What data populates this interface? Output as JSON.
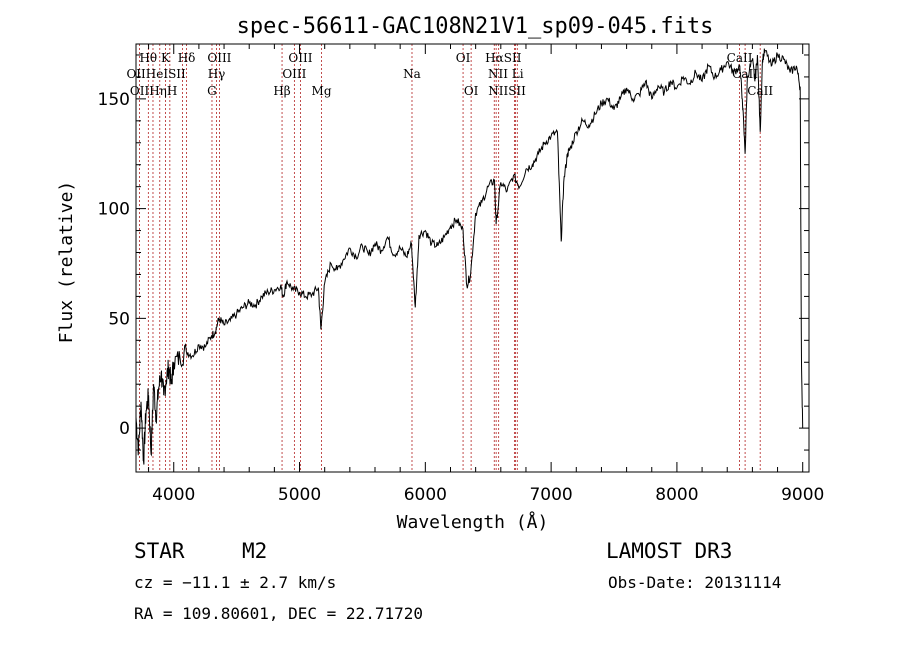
{
  "chart_data": {
    "type": "line",
    "title": "spec-56611-GAC108N21V1_sp09-045.fits",
    "xlabel": "Wavelength (Å)",
    "ylabel": "Flux (relative)",
    "xlim": [
      3700,
      9050
    ],
    "ylim": [
      -20,
      175
    ],
    "xticks": [
      4000,
      5000,
      6000,
      7000,
      8000,
      9000
    ],
    "yticks": [
      0,
      50,
      100,
      150
    ],
    "series": [
      {
        "name": "flux",
        "x": [
          3700,
          3720,
          3740,
          3760,
          3780,
          3800,
          3820,
          3840,
          3860,
          3880,
          3900,
          3920,
          3940,
          3960,
          3980,
          4000,
          4050,
          4100,
          4150,
          4200,
          4250,
          4300,
          4330,
          4360,
          4400,
          4450,
          4500,
          4550,
          4600,
          4650,
          4700,
          4750,
          4800,
          4850,
          4870,
          4900,
          4950,
          5000,
          5050,
          5100,
          5150,
          5170,
          5200,
          5250,
          5300,
          5350,
          5400,
          5450,
          5500,
          5550,
          5600,
          5650,
          5700,
          5750,
          5800,
          5850,
          5890,
          5920,
          5950,
          6000,
          6050,
          6100,
          6150,
          6200,
          6250,
          6300,
          6330,
          6360,
          6400,
          6450,
          6500,
          6550,
          6563,
          6600,
          6650,
          6700,
          6750,
          6800,
          6850,
          6900,
          6950,
          7000,
          7050,
          7080,
          7100,
          7130,
          7150,
          7200,
          7250,
          7300,
          7350,
          7400,
          7450,
          7500,
          7550,
          7600,
          7650,
          7700,
          7750,
          7800,
          7850,
          7900,
          7950,
          8000,
          8050,
          8100,
          8150,
          8200,
          8250,
          8300,
          8350,
          8400,
          8450,
          8500,
          8520,
          8542,
          8560,
          8600,
          8620,
          8640,
          8662,
          8680,
          8700,
          8750,
          8800,
          8850,
          8900,
          8950,
          8980,
          8990,
          9000
        ],
        "y": [
          5,
          -10,
          12,
          -15,
          8,
          15,
          -12,
          20,
          5,
          18,
          25,
          15,
          22,
          28,
          20,
          30,
          32,
          35,
          33,
          38,
          37,
          42,
          44,
          50,
          47,
          49,
          52,
          55,
          57,
          56,
          60,
          62,
          63,
          65,
          60,
          67,
          63,
          62,
          60,
          61,
          64,
          45,
          66,
          75,
          72,
          77,
          82,
          78,
          83,
          79,
          84,
          81,
          87,
          79,
          82,
          78,
          84,
          55,
          88,
          90,
          84,
          83,
          87,
          92,
          95,
          90,
          65,
          70,
          98,
          103,
          110,
          113,
          93,
          112,
          108,
          115,
          110,
          118,
          120,
          125,
          130,
          133,
          135,
          85,
          112,
          125,
          127,
          135,
          140,
          138,
          143,
          148,
          150,
          145,
          150,
          155,
          150,
          152,
          158,
          150,
          156,
          153,
          158,
          155,
          160,
          157,
          162,
          158,
          165,
          160,
          163,
          167,
          162,
          165,
          150,
          125,
          160,
          168,
          158,
          170,
          135,
          168,
          172,
          165,
          170,
          168,
          162,
          165,
          155,
          30,
          0
        ]
      }
    ],
    "emission_lines": [
      {
        "label": "OII",
        "wl": 3727
      },
      {
        "label": "Hθ",
        "wl": 3798
      },
      {
        "label": "Hη",
        "wl": 3835
      },
      {
        "label": "HeI",
        "wl": 3889
      },
      {
        "label": "K",
        "wl": 3934
      },
      {
        "label": "H",
        "wl": 3969
      },
      {
        "label": "SII",
        "wl": 4069
      },
      {
        "label": "Hδ",
        "wl": 4102
      },
      {
        "label": "G",
        "wl": 4304
      },
      {
        "label": "Hγ",
        "wl": 4340
      },
      {
        "label": "OIII",
        "wl": 4363
      },
      {
        "label": "Hβ",
        "wl": 4861
      },
      {
        "label": "OIII",
        "wl": 4959
      },
      {
        "label": "OIII",
        "wl": 5007
      },
      {
        "label": "Mg",
        "wl": 5175
      },
      {
        "label": "Na",
        "wl": 5894
      },
      {
        "label": "OI",
        "wl": 6300
      },
      {
        "label": "OI",
        "wl": 6364
      },
      {
        "label": "NII",
        "wl": 6548
      },
      {
        "label": "Hα",
        "wl": 6563
      },
      {
        "label": "NII",
        "wl": 6583
      },
      {
        "label": "Li",
        "wl": 6708
      },
      {
        "label": "SII",
        "wl": 6716
      },
      {
        "label": "SII",
        "wl": 6731
      },
      {
        "label": "CaII",
        "wl": 8498
      },
      {
        "label": "CaII",
        "wl": 8542
      },
      {
        "label": "CaII",
        "wl": 8662
      }
    ],
    "line_label_rows": [
      [
        {
          "text": "Hθ",
          "wl": 3798
        },
        {
          "text": "K",
          "wl": 3934
        },
        {
          "text": "Hδ",
          "wl": 4102
        },
        {
          "text": "OIII",
          "wl": 4363
        },
        {
          "text": "OIII",
          "wl": 5007
        },
        {
          "text": "OI",
          "wl": 6300
        },
        {
          "text": "HαSII",
          "wl": 6620
        },
        {
          "text": "CaII",
          "wl": 8498
        }
      ],
      [
        {
          "text": "OIIHeISII",
          "wl": 3860
        },
        {
          "text": "Hγ",
          "wl": 4340
        },
        {
          "text": "OIII",
          "wl": 4959
        },
        {
          "text": "Na",
          "wl": 5894
        },
        {
          "text": "NII Li",
          "wl": 6640
        },
        {
          "text": "CaII",
          "wl": 8542
        }
      ],
      [
        {
          "text": "OIIHηH",
          "wl": 3840
        },
        {
          "text": "G",
          "wl": 4304
        },
        {
          "text": "Hβ",
          "wl": 4861
        },
        {
          "text": "Mg",
          "wl": 5175
        },
        {
          "text": "OI",
          "wl": 6364
        },
        {
          "text": "NIISII",
          "wl": 6650
        },
        {
          "text": "CaII",
          "wl": 8662
        }
      ]
    ]
  },
  "info": {
    "object_class": "STAR",
    "subclass": "M2",
    "survey": "LAMOST DR3",
    "redshift": "cz = −11.1 ± 2.7 km/s",
    "obs_date": "Obs-Date: 20131114",
    "coords": "RA = 109.80601, DEC =  22.71720"
  }
}
